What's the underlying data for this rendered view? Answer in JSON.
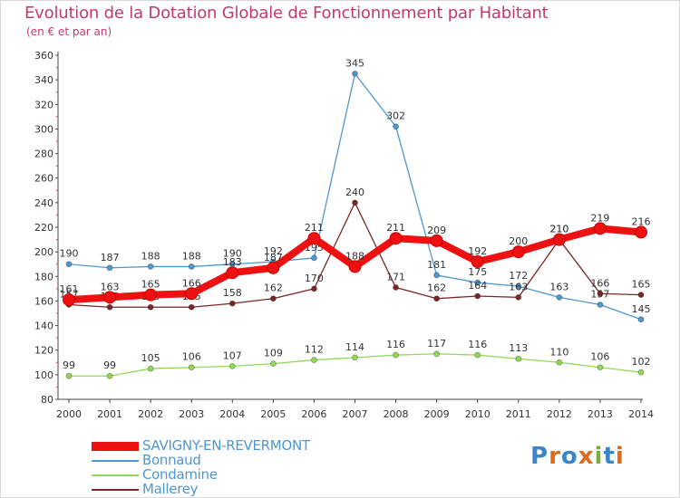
{
  "header": {
    "title": "Evolution de la Dotation Globale de Fonctionnement par Habitant",
    "subtitle": "(en € et par an)"
  },
  "logo": {
    "text": "Proxiti",
    "colors": [
      "#3a86c8",
      "#e06a1c",
      "#3a86c8",
      "#e06a1c",
      "#7ab03a",
      "#3a86c8",
      "#e06a1c"
    ]
  },
  "chart_data": {
    "type": "line",
    "title": "Evolution de la Dotation Globale de Fonctionnement par Habitant",
    "subtitle": "(en € et par an)",
    "xlabel": "",
    "ylabel": "",
    "x": [
      "2000",
      "2001",
      "2002",
      "2003",
      "2004",
      "2005",
      "2006",
      "2007",
      "2008",
      "2009",
      "2010",
      "2011",
      "2012",
      "2013",
      "2014"
    ],
    "ylim": [
      80,
      360
    ],
    "yticks": [
      80,
      100,
      120,
      140,
      160,
      180,
      200,
      220,
      240,
      260,
      280,
      300,
      320,
      340,
      360
    ],
    "grid": false,
    "legend_position": "bottom-left",
    "series": [
      {
        "name": "SAVIGNY-EN-REVERMONT",
        "color": "#ee1111",
        "emphasis": true,
        "values": [
          161,
          163,
          165,
          166,
          183,
          187,
          211,
          188,
          211,
          209,
          192,
          200,
          210,
          219,
          216
        ],
        "labels": [
          "161",
          "163",
          "165",
          "166",
          "183",
          "187",
          "211",
          "188",
          "211",
          "209",
          "192",
          "200",
          "210",
          "219",
          "216"
        ]
      },
      {
        "name": "Bonnaud",
        "color": "#4f97cf",
        "values": [
          190,
          187,
          188,
          188,
          190,
          192,
          195,
          345,
          302,
          181,
          175,
          172,
          163,
          157,
          145
        ],
        "labels": [
          "190",
          "187",
          "188",
          "188",
          "190",
          "192",
          "195",
          "345",
          "302",
          "181",
          "175",
          "172",
          "163",
          "157",
          "145"
        ]
      },
      {
        "name": "Condamine",
        "color": "#8fd957",
        "values": [
          99,
          99,
          105,
          106,
          107,
          109,
          112,
          114,
          116,
          117,
          116,
          113,
          110,
          106,
          102
        ],
        "labels": [
          "99",
          "99",
          "105",
          "106",
          "107",
          "109",
          "112",
          "114",
          "116",
          "117",
          "116",
          "113",
          "110",
          "106",
          "102"
        ]
      },
      {
        "name": "Mallerey",
        "color": "#7a2626",
        "values": [
          157,
          155,
          155,
          155,
          158,
          162,
          170,
          240,
          171,
          162,
          164,
          163,
          210,
          166,
          165
        ],
        "labels": [
          "157",
          "155",
          "155",
          "155",
          "158",
          "162",
          "170",
          "240",
          "171",
          "162",
          "164",
          "163",
          "210",
          "166",
          "165"
        ]
      }
    ]
  }
}
